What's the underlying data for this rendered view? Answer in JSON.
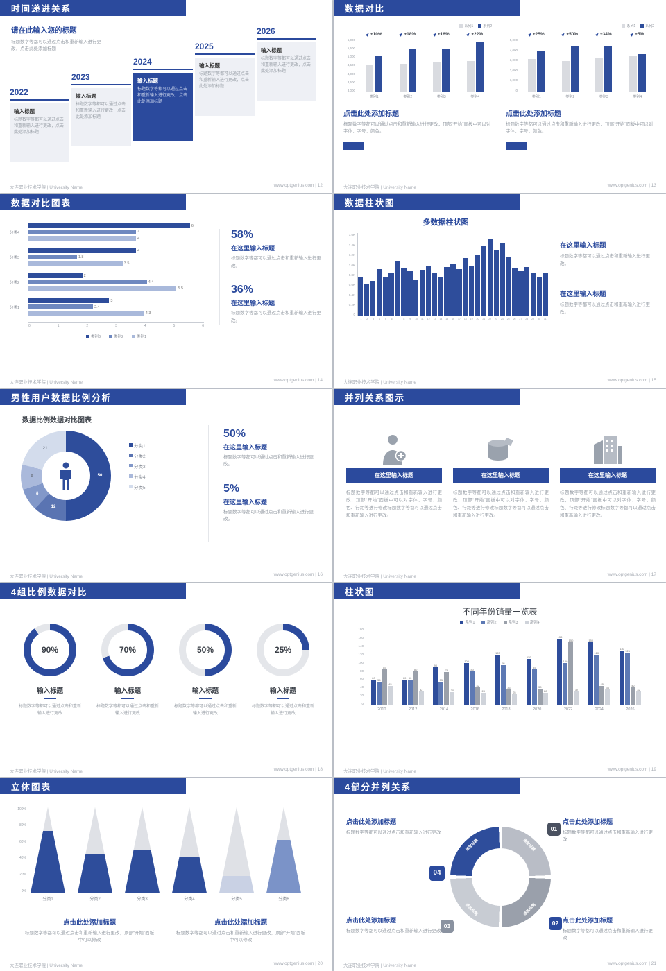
{
  "footer": {
    "left": "大连职业技术学院 | University Name",
    "site": "www.optgenius.com",
    "sep": " | "
  },
  "s12": {
    "page": "12",
    "title": "时间递进关系",
    "heading": "请在此输入您的标题",
    "subtext": "标题数字等都可以通过点击和重新输入进行更改，点击此处添加标题",
    "items": [
      {
        "year": "2022",
        "label": "输入标题",
        "body": "标题数字等都可以通过点击和重新输入进行更改，点击此处添加标题"
      },
      {
        "year": "2023",
        "label": "输入标题",
        "body": "标题数字等都可以通过点击和重新输入进行更改，点击此处添加标题"
      },
      {
        "year": "2024",
        "label": "输入标题",
        "body": "标题数字等都可以通过点击和重新输入进行更改，点击此处添加标题"
      },
      {
        "year": "2025",
        "label": "输入标题",
        "body": "标题数字等都可以通过点击和重新输入进行更改，点击此处添加标题"
      },
      {
        "year": "2026",
        "label": "输入标题",
        "body": "标题数字等都可以通过点击和重新输入进行更改，点击此处添加标题"
      }
    ]
  },
  "s13": {
    "page": "13",
    "title": "数据对比",
    "panels": [
      {
        "heading": "点击此处添加标题",
        "body": "标题数字等都可以通过点击和重新输入进行更改，顶部“开始”面板中可以对字体、字号、颜色。",
        "chart": {
          "type": "bar",
          "categories": [
            "类别1",
            "类别2",
            "类别3",
            "类别4"
          ],
          "pcts": [
            "+10%",
            "+18%",
            "+16%",
            "+22%"
          ],
          "ymin": 3000,
          "ymax": 6000,
          "yticks": [
            "6,000",
            "5,500",
            "5,000",
            "4,500",
            "4,000",
            "3,500",
            "3,000"
          ],
          "series": [
            {
              "name": "系列1",
              "color": "#d9dbe0",
              "values": [
                4500,
                4520,
                4600,
                4700
              ]
            },
            {
              "name": "系列2",
              "color": "#2e4d9b",
              "values": [
                4950,
                5330,
                5340,
                5730
              ]
            }
          ]
        }
      },
      {
        "heading": "点击此处添加标题",
        "body": "标题数字等都可以通过点击和重新输入进行更改，顶部“开始”面板中可以对字体、字号、颜色。",
        "chart": {
          "type": "bar",
          "categories": [
            "类别1",
            "类别2",
            "类别3",
            "类别4"
          ],
          "pcts": [
            "+25%",
            "+50%",
            "+34%",
            "+5%"
          ],
          "ymin": 0,
          "ymax": 5000,
          "yticks": [
            "5,000",
            "4,000",
            "3,000",
            "2,000",
            "1,000",
            "0"
          ],
          "series": [
            {
              "name": "系列1",
              "color": "#d9dbe0",
              "values": [
                3000,
                2800,
                3100,
                3300
              ]
            },
            {
              "name": "系列2",
              "color": "#2e4d9b",
              "values": [
                3750,
                4200,
                4150,
                3460
              ]
            }
          ]
        }
      }
    ]
  },
  "s14": {
    "page": "14",
    "title": "数据对比图表",
    "chart": {
      "type": "bar-horizontal",
      "xmax": 6,
      "xticks": [
        "0",
        "1",
        "2",
        "3",
        "4",
        "5",
        "6"
      ],
      "groups": [
        "分类4",
        "分类3",
        "分类2",
        "分类1"
      ],
      "values": [
        [
          6,
          4,
          4
        ],
        [
          4,
          1.8,
          3.5
        ],
        [
          2,
          4.4,
          5.5
        ],
        [
          3,
          2.4,
          4.3
        ]
      ],
      "legend": [
        {
          "label": "类别3",
          "color": "#2e4d9b"
        },
        {
          "label": "类别2",
          "color": "#6e88c0"
        },
        {
          "label": "类别1",
          "color": "#a9b9db"
        }
      ]
    },
    "stats": [
      {
        "value": "58%",
        "label": "在这里输入标题",
        "body": "标题数字等都可以通过点击和重新输入进行更改。"
      },
      {
        "value": "36%",
        "label": "在这里输入标题",
        "body": "标题数字等都可以通过点击和重新输入进行更改。"
      }
    ]
  },
  "s15": {
    "page": "15",
    "title": "数据柱状图",
    "chart_title": "多数据柱状图",
    "ymax": 1600,
    "yticks": [
      "1.6K",
      "1.4K",
      "1.2K",
      "1.0K",
      "0.8K",
      "0.6K",
      "0.4K",
      "0.2K",
      "0"
    ],
    "xticks": [
      "1",
      "2",
      "3",
      "4",
      "5",
      "6",
      "7",
      "8",
      "9",
      "10",
      "11",
      "12",
      "13",
      "14",
      "15",
      "16",
      "17",
      "18",
      "19",
      "20",
      "21",
      "22",
      "23",
      "24",
      "25",
      "26",
      "27",
      "28",
      "29",
      "30",
      "31"
    ],
    "values": [
      750,
      620,
      680,
      900,
      760,
      820,
      1050,
      920,
      860,
      700,
      880,
      980,
      840,
      760,
      950,
      1020,
      900,
      1120,
      980,
      1180,
      1350,
      1500,
      1280,
      1420,
      1150,
      920,
      860,
      950,
      820,
      760,
      840
    ],
    "blocks": [
      {
        "label": "在这里输入标题",
        "body": "标题数字等都可以通过点击和重新输入进行更改。"
      },
      {
        "label": "在这里输入标题",
        "body": "标题数字等都可以通过点击和重新输入进行更改。"
      }
    ]
  },
  "s16": {
    "page": "16",
    "title": "男性用户数据比例分析",
    "chart_title": "数据比例数据对比图表",
    "donut": {
      "values": [
        50,
        12,
        8,
        9,
        21
      ],
      "labels": [
        "50",
        "12",
        "8",
        "9",
        "21"
      ],
      "colors": [
        "#2e4d9b",
        "#5a74b2",
        "#8298c9",
        "#aab9db",
        "#d3dcec"
      ]
    },
    "legend": [
      "分类1",
      "分类2",
      "分类3",
      "分类4",
      "分类5"
    ],
    "stats": [
      {
        "value": "50%",
        "label": "在这里输入标题",
        "body": "标题数字等都可以通过点击和重新输入进行更改。"
      },
      {
        "value": "5%",
        "label": "在这里输入标题",
        "body": "标题数字等都可以通过点击和重新输入进行更改。"
      }
    ]
  },
  "s17": {
    "page": "17",
    "title": "并列关系图示",
    "items": [
      {
        "icon": "nurse-icon",
        "label": "在这里输入标题",
        "body": "标题数字等都可以通过点击和重新输入进行更改，顶部“开始”面板中可以对字体、字号、颜色、行距等进行修改标题数字等都可以通过点击和重新输入进行更改。"
      },
      {
        "icon": "cylinder-icon",
        "label": "在这里输入标题",
        "body": "标题数字等都可以通过点击和重新输入进行更改，顶部“开始”面板中可以对字体、字号、颜色、行距等进行修改标题数字等都可以通过点击和重新输入进行更改。"
      },
      {
        "icon": "building-icon",
        "label": "在这里输入标题",
        "body": "标题数字等都可以通过点击和重新输入进行更改，顶部“开始”面板中可以对字体、字号、颜色、行距等进行修改标题数字等都可以通过点击和重新输入进行更改。"
      }
    ]
  },
  "s18": {
    "page": "18",
    "title": "4组比例数据对比",
    "gauges": [
      {
        "pct": "90%",
        "value": 90,
        "label": "输入标题",
        "body": "标题数字等都可以通过点击和重新输入进行更改"
      },
      {
        "pct": "70%",
        "value": 70,
        "label": "输入标题",
        "body": "标题数字等都可以通过点击和重新输入进行更改"
      },
      {
        "pct": "50%",
        "value": 50,
        "label": "输入标题",
        "body": "标题数字等都可以通过点击和重新输入进行更改"
      },
      {
        "pct": "25%",
        "value": 25,
        "label": "输入标题",
        "body": "标题数字等都可以通过点击和重新输入进行更改"
      }
    ]
  },
  "s19": {
    "page": "19",
    "title": "柱状图",
    "chart_title": "不同年份销量一览表",
    "ymax": 180,
    "yticks": [
      "180",
      "160",
      "140",
      "120",
      "100",
      "80",
      "60",
      "40",
      "20",
      "0"
    ],
    "categories": [
      "2010",
      "2012",
      "2014",
      "2016",
      "2018",
      "2020",
      "2022",
      "2024",
      "2026"
    ],
    "series": [
      {
        "name": "系列1",
        "color": "#2e4d9b",
        "values": [
          60,
          60,
          90,
          100,
          120,
          110,
          158,
          150,
          130
        ]
      },
      {
        "name": "系列2",
        "color": "#5d79b4",
        "values": [
          55,
          60,
          55,
          80,
          95,
          85,
          100,
          120,
          125
        ]
      },
      {
        "name": "系列3",
        "color": "#9aa0aa",
        "values": [
          85,
          80,
          78,
          42,
          36,
          38,
          150,
          45,
          42
        ]
      },
      {
        "name": "系列4",
        "color": "#cfd3da",
        "values": [
          45,
          32,
          30,
          28,
          25,
          28,
          32,
          36,
          32
        ]
      }
    ]
  },
  "s20": {
    "page": "20",
    "title": "立体图表",
    "yticks": [
      "100%",
      "80%",
      "60%",
      "40%",
      "20%",
      "0%"
    ],
    "cones": [
      {
        "label": "分类1",
        "fill": 72,
        "color": "#2e4d9b"
      },
      {
        "label": "分类2",
        "fill": 46,
        "color": "#2e4d9b"
      },
      {
        "label": "分类3",
        "fill": 50,
        "color": "#2e4d9b"
      },
      {
        "label": "分类4",
        "fill": 42,
        "color": "#2e4d9b"
      },
      {
        "label": "分类5",
        "fill": 20,
        "color": "#c9d1e4"
      },
      {
        "label": "分类6",
        "fill": 62,
        "color": "#7b93c8"
      }
    ],
    "blocks": [
      {
        "heading": "点击此处添加标题",
        "body": "标题数字等都可以通过点击和重新输入进行更改，顶部“开始”面板中可以修改"
      },
      {
        "heading": "点击此处添加标题",
        "body": "标题数字等都可以通过点击和重新输入进行更改，顶部“开始”面板中可以修改"
      }
    ]
  },
  "s21": {
    "page": "21",
    "title": "4部分并列关系",
    "segments": [
      {
        "label": "添加标题",
        "color": "#b9bdc6"
      },
      {
        "label": "添加标题",
        "color": "#9aa0ab"
      },
      {
        "label": "添加标题",
        "color": "#c8ccd3"
      },
      {
        "label": "添加标题",
        "color": "#2e4d9b"
      }
    ],
    "numbers": [
      "01",
      "02",
      "03",
      "04"
    ],
    "blocks": [
      {
        "heading": "点击此处添加标题",
        "body": "标题数字等都可以通过点击和重新输入进行更改"
      },
      {
        "heading": "点击此处添加标题",
        "body": "标题数字等都可以通过点击和重新输入进行更改"
      },
      {
        "heading": "点击此处添加标题",
        "body": "标题数字等都可以通过点击和重新输入进行更改"
      },
      {
        "heading": "点击此处添加标题",
        "body": "标题数字等都可以通过点击和重新输入进行更改"
      }
    ]
  }
}
